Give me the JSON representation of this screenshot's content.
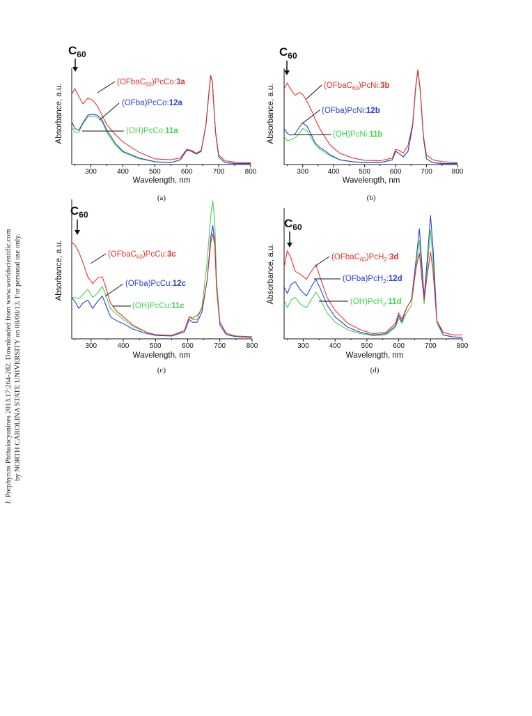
{
  "sidebar_note": {
    "line1": "J. Porphyrins Phthalocyanines 2013.17:264-282. Downloaded from www.worldscientific.com",
    "line2": "by NORTH CAROLINA STATE UNIVERSITY on 08/08/13. For personal use only."
  },
  "colors": {
    "red": "#e8322a",
    "blue": "#2a3fd6",
    "green": "#3fd64a",
    "black": "#111111"
  },
  "chart_data": [
    {
      "type": "line",
      "panel": "(a)",
      "c60_label": "C60",
      "xlabel": "Wavelength, nm",
      "ylabel": "Absorbance, a.u.",
      "xlim": [
        240,
        800
      ],
      "xticks": [
        "300",
        "400",
        "500",
        "600",
        "700",
        "800"
      ],
      "series": [
        {
          "name": "(OFbaC60)PcCo:3a",
          "text": "(OFbaC",
          "sub": "60",
          "text2": ")PcCo:",
          "bold": "3a",
          "color": "#e8322a",
          "x": [
            240,
            250,
            262,
            275,
            290,
            305,
            320,
            335,
            350,
            375,
            400,
            450,
            500,
            550,
            580,
            600,
            615,
            630,
            645,
            660,
            670,
            675,
            680,
            690,
            700,
            720,
            750,
            780,
            800
          ],
          "y": [
            0.74,
            0.8,
            0.72,
            0.64,
            0.7,
            0.68,
            0.62,
            0.52,
            0.42,
            0.32,
            0.24,
            0.13,
            0.06,
            0.05,
            0.07,
            0.16,
            0.15,
            0.12,
            0.15,
            0.42,
            0.78,
            0.93,
            0.88,
            0.35,
            0.1,
            0.04,
            0.025,
            0.02,
            0.02
          ]
        },
        {
          "name": "(OFba)PcCo:12a",
          "text": "(OFba)PcCo:",
          "bold": "12a",
          "color": "#2a3fd6",
          "x": [
            240,
            250,
            262,
            275,
            290,
            305,
            320,
            335,
            350,
            375,
            400,
            450,
            500,
            550,
            580,
            600,
            615,
            630,
            645,
            660,
            670,
            675,
            680,
            690,
            700,
            720,
            750,
            780,
            800
          ],
          "y": [
            0.45,
            0.38,
            0.36,
            0.44,
            0.52,
            0.53,
            0.52,
            0.47,
            0.36,
            0.23,
            0.14,
            0.07,
            0.03,
            0.02,
            0.05,
            0.15,
            0.14,
            0.11,
            0.14,
            0.42,
            0.78,
            0.94,
            0.88,
            0.34,
            0.08,
            0.02,
            0.012,
            0.01,
            0.01
          ]
        },
        {
          "name": "(OH)PcCo:11a",
          "text": "(OH)PcCo:",
          "bold": "11a",
          "color": "#3fd64a",
          "x": [
            240,
            250,
            262,
            275,
            290,
            305,
            320,
            335,
            350,
            375,
            400,
            450,
            500,
            550,
            580,
            600,
            615,
            630,
            645,
            660,
            670,
            675,
            680,
            690,
            700,
            720,
            750,
            780,
            800
          ],
          "y": [
            0.4,
            0.34,
            0.34,
            0.43,
            0.5,
            0.51,
            0.5,
            0.45,
            0.34,
            0.21,
            0.13,
            0.06,
            0.03,
            0.02,
            0.05,
            0.15,
            0.14,
            0.11,
            0.14,
            0.42,
            0.78,
            0.93,
            0.87,
            0.34,
            0.08,
            0.02,
            0.012,
            0.01,
            0.01
          ]
        }
      ]
    },
    {
      "type": "line",
      "panel": "(b)",
      "c60_label": "C60",
      "xlabel": "Wavelength, nm",
      "ylabel": "Absorbance, a.u.",
      "xlim": [
        240,
        800
      ],
      "xticks": [
        "300",
        "400",
        "500",
        "600",
        "700",
        "800"
      ],
      "series": [
        {
          "name": "(OFbaC60)PcNi:3b",
          "text": "(OFbaC",
          "sub": "60",
          "text2": ")PcNi:",
          "bold": "3b",
          "color": "#e8322a",
          "x": [
            240,
            250,
            260,
            275,
            290,
            300,
            315,
            330,
            340,
            355,
            370,
            390,
            420,
            460,
            500,
            550,
            590,
            600,
            610,
            625,
            640,
            655,
            665,
            672,
            680,
            690,
            700,
            720,
            750,
            800
          ],
          "y": [
            0.8,
            0.86,
            0.8,
            0.73,
            0.76,
            0.74,
            0.66,
            0.56,
            0.48,
            0.38,
            0.3,
            0.2,
            0.12,
            0.07,
            0.045,
            0.04,
            0.07,
            0.16,
            0.15,
            0.12,
            0.2,
            0.42,
            0.82,
            1.0,
            0.78,
            0.3,
            0.1,
            0.05,
            0.03,
            0.02
          ]
        },
        {
          "name": "(OFba)PcNi:12b",
          "text": "(OFba)PcNi:",
          "bold": "12b",
          "color": "#2a3fd6",
          "x": [
            240,
            250,
            260,
            275,
            290,
            300,
            315,
            330,
            340,
            355,
            370,
            390,
            420,
            460,
            500,
            550,
            590,
            600,
            610,
            625,
            640,
            655,
            665,
            672,
            680,
            690,
            700,
            720,
            750,
            800
          ],
          "y": [
            0.38,
            0.33,
            0.31,
            0.32,
            0.4,
            0.44,
            0.4,
            0.3,
            0.23,
            0.18,
            0.15,
            0.1,
            0.05,
            0.03,
            0.02,
            0.02,
            0.05,
            0.14,
            0.12,
            0.08,
            0.14,
            0.4,
            0.82,
            1.0,
            0.78,
            0.28,
            0.06,
            0.02,
            0.01,
            0.01
          ]
        },
        {
          "name": "(OH)PcNi:11b",
          "text": "(OH)PcNi:",
          "bold": "11b",
          "color": "#3fd64a",
          "x": [
            240,
            250,
            260,
            275,
            290,
            300,
            315,
            330,
            340,
            355,
            370,
            390,
            420,
            460,
            500,
            550,
            590,
            600,
            610,
            625,
            640,
            655,
            665,
            672,
            680,
            690,
            700,
            720,
            750,
            800
          ],
          "y": [
            0.3,
            0.25,
            0.26,
            0.28,
            0.33,
            0.38,
            0.35,
            0.27,
            0.21,
            0.16,
            0.13,
            0.09,
            0.05,
            0.03,
            0.02,
            0.02,
            0.05,
            0.14,
            0.12,
            0.08,
            0.14,
            0.4,
            0.82,
            0.99,
            0.77,
            0.28,
            0.06,
            0.02,
            0.01,
            0.01
          ]
        }
      ]
    },
    {
      "type": "line",
      "panel": "(c)",
      "c60_label": "C60",
      "xlabel": "Wavelength, nm",
      "ylabel": "Absorbance, a.u.",
      "xlim": [
        240,
        800
      ],
      "xticks": [
        "300",
        "400",
        "500",
        "600",
        "700",
        "800"
      ],
      "series": [
        {
          "name": "(OFbaC60)PcCu:3c",
          "text": "(OFbaC",
          "sub": "60",
          "text2": ")PcCu:",
          "bold": "3c",
          "color": "#e8322a",
          "x": [
            240,
            250,
            262,
            275,
            290,
            305,
            320,
            335,
            345,
            360,
            380,
            400,
            430,
            470,
            500,
            550,
            590,
            605,
            615,
            630,
            645,
            660,
            672,
            678,
            684,
            690,
            700,
            720,
            750,
            800
          ],
          "y": [
            0.7,
            0.68,
            0.63,
            0.55,
            0.45,
            0.4,
            0.44,
            0.45,
            0.38,
            0.26,
            0.2,
            0.16,
            0.1,
            0.05,
            0.03,
            0.025,
            0.06,
            0.16,
            0.15,
            0.17,
            0.22,
            0.42,
            0.7,
            0.76,
            0.68,
            0.36,
            0.12,
            0.04,
            0.02,
            0.015
          ]
        },
        {
          "name": "(OFba)PcCu:12c",
          "text": "(OFba)PcCu:",
          "bold": "12c",
          "color": "#2a3fd6",
          "x": [
            240,
            250,
            262,
            275,
            290,
            305,
            320,
            335,
            345,
            360,
            380,
            400,
            430,
            470,
            500,
            550,
            590,
            605,
            615,
            630,
            645,
            660,
            672,
            678,
            684,
            690,
            700,
            720,
            750,
            800
          ],
          "y": [
            0.3,
            0.27,
            0.22,
            0.26,
            0.28,
            0.22,
            0.27,
            0.31,
            0.25,
            0.16,
            0.13,
            0.11,
            0.07,
            0.04,
            0.025,
            0.02,
            0.05,
            0.14,
            0.12,
            0.12,
            0.2,
            0.42,
            0.74,
            0.82,
            0.7,
            0.36,
            0.1,
            0.03,
            0.015,
            0.01
          ]
        },
        {
          "name": "(OH)PcCu:11c",
          "text": "(OH)PcCu:",
          "bold": "11c",
          "color": "#3fd64a",
          "x": [
            240,
            250,
            262,
            275,
            290,
            305,
            320,
            335,
            345,
            360,
            380,
            400,
            430,
            470,
            500,
            550,
            590,
            605,
            615,
            630,
            645,
            660,
            672,
            678,
            684,
            690,
            700,
            720,
            750,
            800
          ],
          "y": [
            0.3,
            0.3,
            0.29,
            0.32,
            0.36,
            0.3,
            0.33,
            0.38,
            0.32,
            0.22,
            0.18,
            0.14,
            0.09,
            0.05,
            0.03,
            0.025,
            0.06,
            0.16,
            0.14,
            0.14,
            0.24,
            0.55,
            0.9,
            1.0,
            0.85,
            0.42,
            0.12,
            0.04,
            0.02,
            0.015
          ]
        }
      ]
    },
    {
      "type": "line",
      "panel": "(d)",
      "c60_label": "C60",
      "xlabel": "Wavelength, nm",
      "ylabel": "Absorbance, a.u.",
      "xlim": [
        240,
        800
      ],
      "xticks": [
        "300",
        "400",
        "500",
        "600",
        "700",
        "800"
      ],
      "series": [
        {
          "name": "(OFbaC60)PcH2:3d",
          "text": "(OFbaC",
          "sub": "60",
          "text2": ")PcH",
          "sub2": "2",
          "text3": ":",
          "bold": "3d",
          "color": "#e8322a",
          "x": [
            240,
            250,
            262,
            275,
            290,
            310,
            325,
            340,
            355,
            375,
            400,
            440,
            480,
            520,
            560,
            590,
            600,
            610,
            625,
            640,
            655,
            665,
            672,
            680,
            690,
            700,
            708,
            720,
            740,
            770,
            800
          ],
          "y": [
            0.55,
            0.68,
            0.62,
            0.52,
            0.5,
            0.46,
            0.52,
            0.57,
            0.46,
            0.32,
            0.22,
            0.12,
            0.07,
            0.04,
            0.05,
            0.12,
            0.2,
            0.15,
            0.24,
            0.3,
            0.55,
            0.66,
            0.48,
            0.3,
            0.5,
            0.67,
            0.52,
            0.14,
            0.05,
            0.03,
            0.03
          ]
        },
        {
          "name": "(OFba)PcH2:12d",
          "text": "(OFba)PcH",
          "sub": "2",
          "text2": ":",
          "bold": "12d",
          "color": "#2a3fd6",
          "x": [
            240,
            250,
            262,
            275,
            290,
            310,
            325,
            340,
            355,
            375,
            400,
            440,
            480,
            520,
            560,
            590,
            600,
            610,
            625,
            640,
            655,
            665,
            672,
            680,
            690,
            700,
            708,
            720,
            740,
            770,
            800
          ],
          "y": [
            0.4,
            0.35,
            0.42,
            0.44,
            0.38,
            0.33,
            0.4,
            0.46,
            0.38,
            0.26,
            0.17,
            0.09,
            0.05,
            0.03,
            0.04,
            0.1,
            0.18,
            0.13,
            0.24,
            0.3,
            0.62,
            0.85,
            0.6,
            0.32,
            0.62,
            0.95,
            0.7,
            0.14,
            0.03,
            0.015,
            0.01
          ]
        },
        {
          "name": "(OH)PcH2:11d",
          "text": "(OH)PcH",
          "sub": "2",
          "text2": ":",
          "bold": "11d",
          "color": "#3fd64a",
          "x": [
            240,
            250,
            262,
            275,
            290,
            310,
            325,
            340,
            355,
            375,
            400,
            440,
            480,
            520,
            560,
            590,
            600,
            610,
            625,
            640,
            655,
            665,
            672,
            680,
            690,
            700,
            708,
            720,
            740,
            770,
            800
          ],
          "y": [
            0.3,
            0.24,
            0.3,
            0.32,
            0.27,
            0.24,
            0.3,
            0.36,
            0.3,
            0.2,
            0.13,
            0.07,
            0.04,
            0.025,
            0.03,
            0.09,
            0.16,
            0.12,
            0.2,
            0.26,
            0.56,
            0.76,
            0.52,
            0.27,
            0.55,
            0.84,
            0.6,
            0.12,
            0.03,
            0.015,
            0.01
          ]
        }
      ]
    }
  ]
}
